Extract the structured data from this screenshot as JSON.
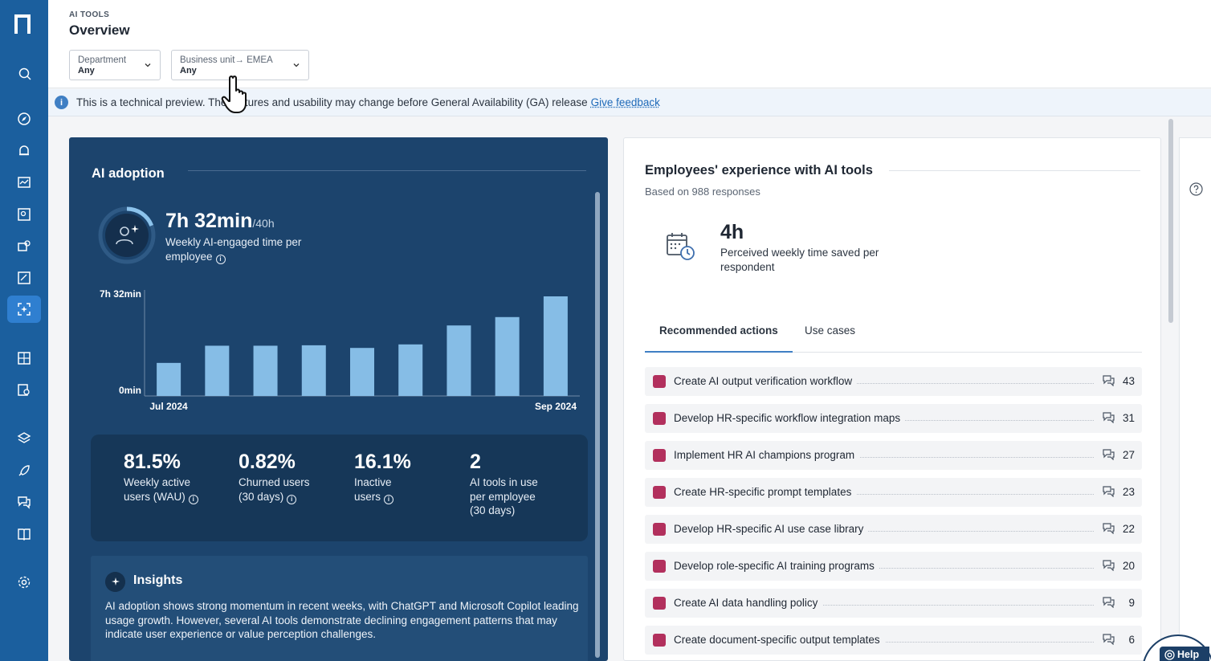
{
  "header": {
    "eyebrow": "AI TOOLS",
    "title": "Overview",
    "filters": [
      {
        "label": "Department",
        "value": "Any"
      },
      {
        "label": "Business unit→  EMEA",
        "value": "Any"
      }
    ]
  },
  "banner": {
    "text": "This is a technical preview. The features and usability may change before General Availability (GA) release",
    "link": "Give feedback"
  },
  "adoption": {
    "title": "AI adoption",
    "time_value": "7h 32min",
    "time_of": "/40h",
    "time_desc": "Weekly AI-engaged time per employee",
    "ring_fraction": 0.19,
    "chart": {
      "y_top_label": "7h 32min",
      "y_bottom_label": "0min",
      "x_start_label": "Jul 2024",
      "x_end_label": "Sep 2024"
    },
    "stats": [
      {
        "value": "81.5%",
        "label": "Weekly active users (WAU)"
      },
      {
        "value": "0.82%",
        "label": "Churned users (30 days)"
      },
      {
        "value": "16.1%",
        "label": "Inactive users"
      },
      {
        "value": "2",
        "label": "AI tools in use per employee (30 days)"
      }
    ],
    "insights_title": "Insights",
    "insights_text": "AI adoption shows strong momentum in recent weeks, with ChatGPT and Microsoft Copilot leading usage growth. However, several AI tools demonstrate declining engagement patterns that may indicate user experience or value perception challenges."
  },
  "chart_data": {
    "type": "bar",
    "title": "",
    "xlabel": "",
    "ylabel": "",
    "ylim": [
      0,
      452
    ],
    "unit": "minutes",
    "x_tick_labels": [
      "Jul 2024",
      "Sep 2024"
    ],
    "y_tick_labels": [
      "0min",
      "7h 32min"
    ],
    "values": [
      150,
      228,
      228,
      230,
      218,
      234,
      320,
      358,
      452
    ],
    "bar_color": "#86bde6"
  },
  "experience": {
    "title": "Employees' experience with AI tools",
    "subtitle": "Based on 988 responses",
    "saved_value": "4h",
    "saved_desc": "Perceived weekly time saved per respondent",
    "tabs": [
      "Recommended actions",
      "Use cases"
    ],
    "actions": [
      {
        "label": "Create AI output verification workflow",
        "count": "43"
      },
      {
        "label": "Develop HR-specific workflow integration maps",
        "count": "31"
      },
      {
        "label": "Implement HR AI champions program",
        "count": "27"
      },
      {
        "label": "Create HR-specific prompt templates",
        "count": "23"
      },
      {
        "label": "Develop HR-specific AI use case library",
        "count": "22"
      },
      {
        "label": "Develop role-specific AI training programs",
        "count": "20"
      },
      {
        "label": "Create AI data handling policy",
        "count": "9"
      },
      {
        "label": "Create document-specific output templates",
        "count": "6"
      }
    ]
  },
  "help": {
    "label": "Help"
  },
  "colors": {
    "sidebar": "#1b5f9e",
    "adoption_bg": "#1c446d",
    "accent": "#3f7fc4",
    "action_icon": "#b2305d"
  }
}
